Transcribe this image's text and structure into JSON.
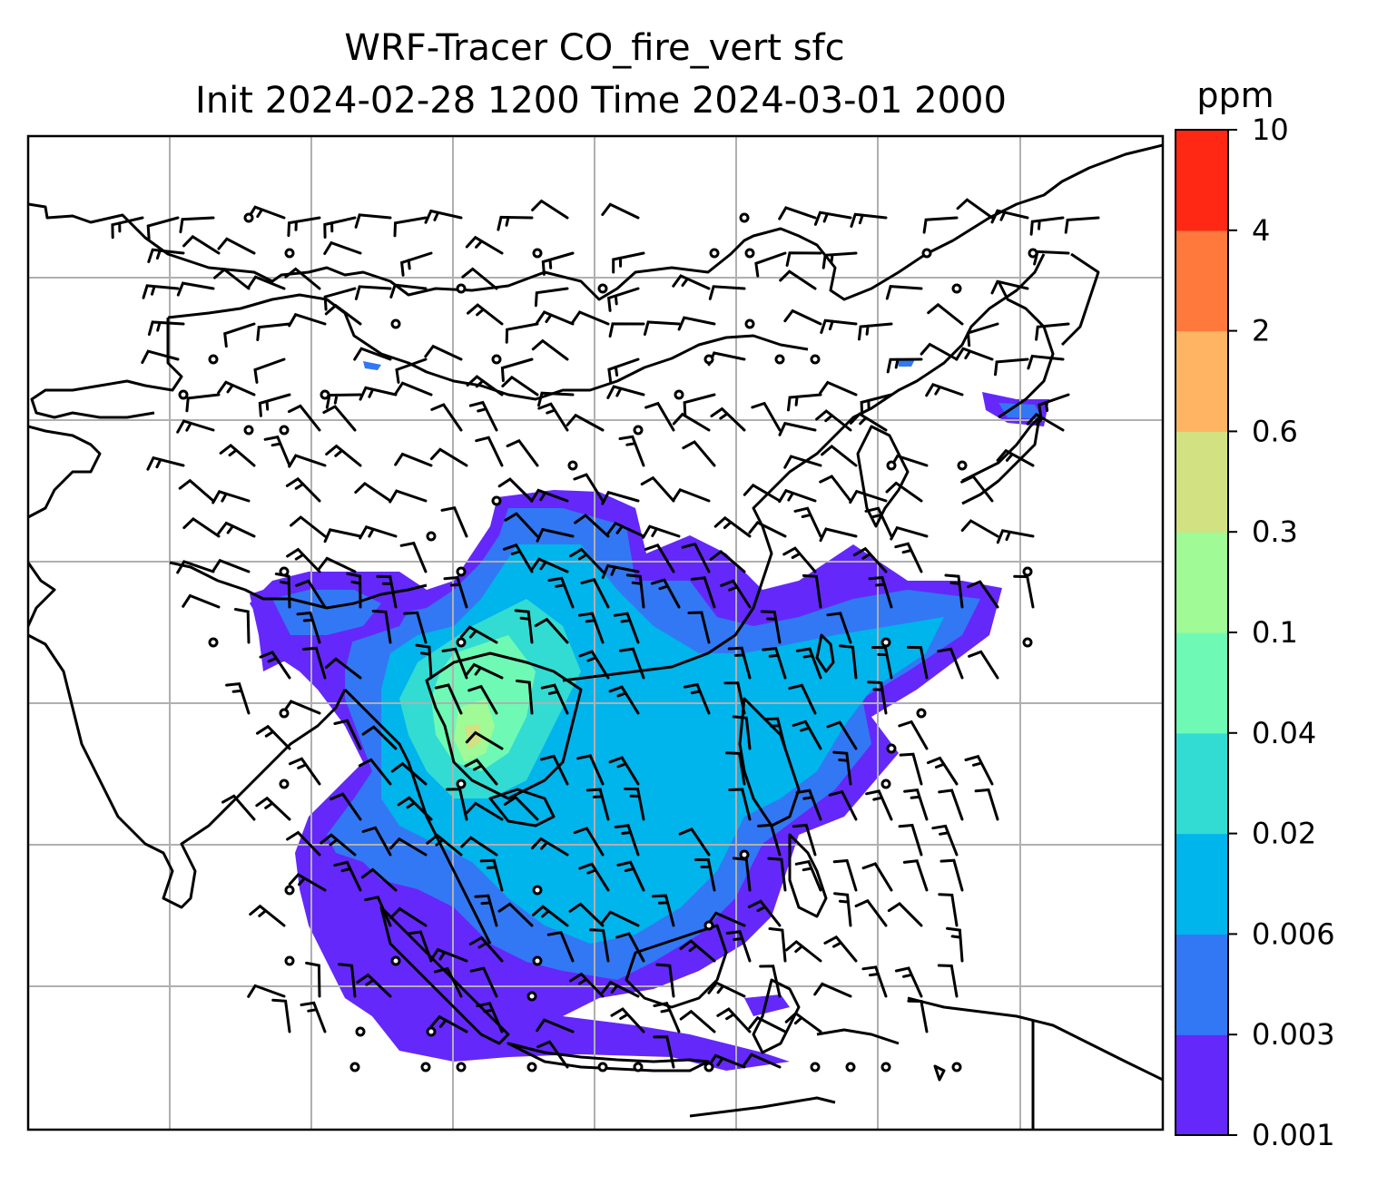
{
  "title": {
    "line1": "WRF-Tracer CO_fire_vert sfc",
    "line2": "Init 2024-02-28 1200 Time 2024-03-01 2000"
  },
  "colorbar": {
    "unit": "ppm",
    "levels": [
      "0.001",
      "0.003",
      "0.006",
      "0.02",
      "0.04",
      "0.1",
      "0.3",
      "0.6",
      "2",
      "4",
      "10"
    ],
    "colors": [
      "#6428fa",
      "#3278f4",
      "#00b4ec",
      "#32dcd2",
      "#6efab4",
      "#a0fa96",
      "#d2e182",
      "#ffb464",
      "#ff783c",
      "#ff2814"
    ]
  },
  "map": {
    "grid_color": "#b0b0b0",
    "coastline_color": "#000000",
    "barb_color": "#000000"
  }
}
